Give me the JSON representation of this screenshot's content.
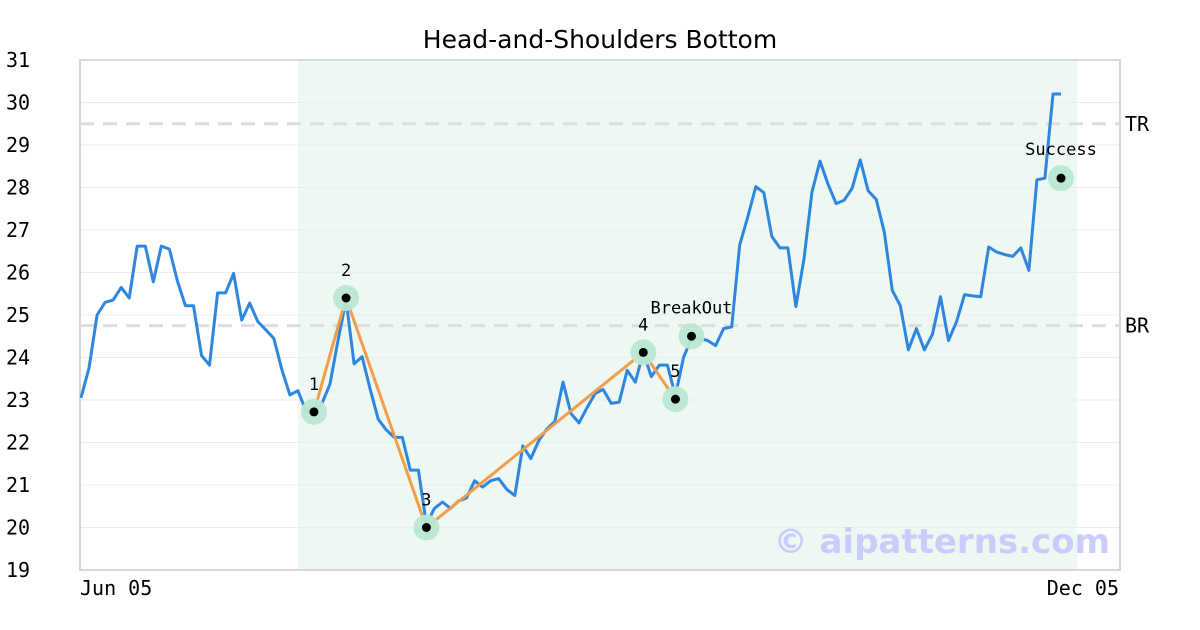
{
  "chart_data": {
    "type": "line",
    "title": "Head-and-Shoulders Bottom",
    "xlabel": "",
    "ylabel": "",
    "ylim": [
      19,
      31
    ],
    "yticks": [
      19,
      20,
      21,
      22,
      23,
      24,
      25,
      26,
      27,
      28,
      29,
      30,
      31
    ],
    "x_tick_labels": [
      "Jun 05",
      "Dec 05"
    ],
    "grid": true,
    "colors": {
      "price": "#2e86de",
      "pattern": "#f39c4a",
      "marker_halo": "#b9e8d2",
      "highlight": "#eef8f3",
      "level_line": "#dddddd",
      "watermark": "#c9cdfb"
    },
    "highlight_range": [
      29,
      124
    ],
    "series": [
      {
        "values": [
          23.05,
          23.75,
          25.0,
          25.3,
          25.35,
          25.65,
          25.4,
          26.62,
          26.62,
          25.78,
          26.62,
          26.55,
          25.8,
          25.22,
          25.22,
          24.05,
          23.82,
          25.52,
          25.52,
          25.98,
          24.88,
          25.28,
          24.85,
          24.65,
          24.45,
          23.72,
          23.12,
          23.22,
          22.75,
          22.72,
          22.92,
          23.38,
          24.4,
          25.35,
          23.85,
          24.02,
          23.25,
          22.55,
          22.3,
          22.12,
          22.12,
          21.35,
          21.35,
          20.08,
          20.45,
          20.6,
          20.45,
          20.62,
          20.7,
          21.1,
          20.95,
          21.1,
          21.15,
          20.9,
          20.75,
          21.92,
          21.62,
          22.05,
          22.32,
          22.5,
          23.42,
          22.68,
          22.46,
          22.82,
          23.15,
          23.25,
          22.92,
          22.95,
          23.7,
          23.42,
          24.12,
          23.55,
          23.82,
          23.82,
          23.1,
          24.0,
          24.45,
          24.45,
          24.4,
          24.28,
          24.68,
          24.72,
          26.65,
          27.3,
          28.02,
          27.88,
          26.85,
          26.58,
          26.58,
          25.2,
          26.32,
          27.9,
          28.62,
          28.08,
          27.62,
          27.7,
          27.98,
          28.65,
          27.92,
          27.72,
          26.95,
          25.58,
          25.22,
          24.18,
          24.68,
          24.18,
          24.55,
          25.43,
          24.4,
          24.85,
          25.48,
          25.45,
          25.43,
          26.6,
          26.48,
          26.42,
          26.38,
          26.58,
          26.05,
          28.18,
          28.22,
          30.2,
          30.2
        ]
      }
    ],
    "pattern_points": [
      {
        "label": "1",
        "index": 29,
        "value": 22.72
      },
      {
        "label": "2",
        "index": 33,
        "value": 25.4
      },
      {
        "label": "3",
        "index": 43,
        "value": 20.0
      },
      {
        "label": "4",
        "index": 70,
        "value": 24.12
      },
      {
        "label": "5",
        "index": 74,
        "value": 23.02
      }
    ],
    "signal_points": [
      {
        "label": "BreakOut",
        "index": 76,
        "value": 24.5
      },
      {
        "label": "Success",
        "index": 122,
        "value": 28.22
      }
    ],
    "levels": [
      {
        "label": "TR",
        "value": 29.5
      },
      {
        "label": "BR",
        "value": 24.75
      }
    ],
    "watermark": "© aipatterns.com"
  }
}
